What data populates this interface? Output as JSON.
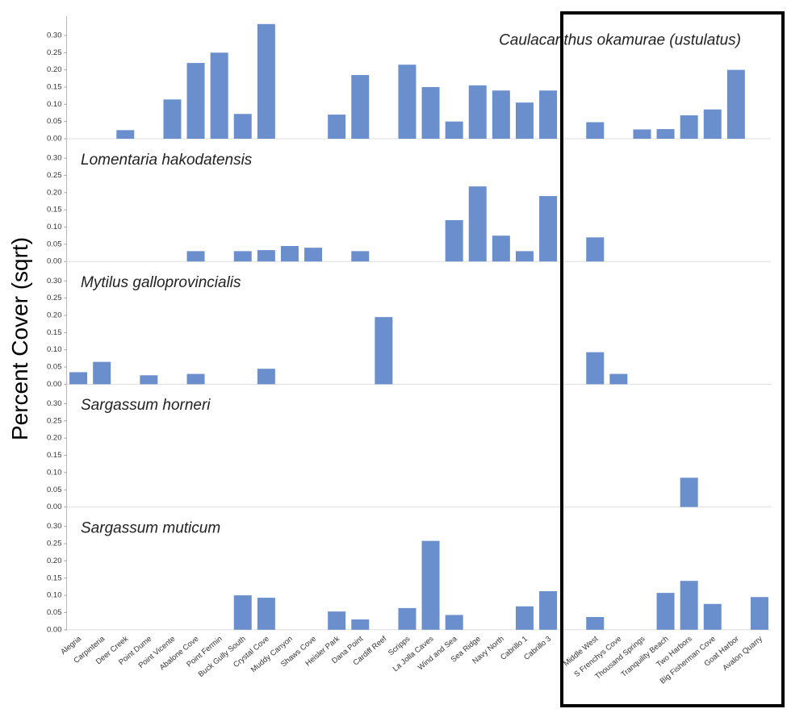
{
  "chart_data": {
    "type": "bar",
    "ylabel": "Percent Cover (sqrt)",
    "small_multiples": true,
    "categories": [
      "Alegria",
      "Carpinteria",
      "Deer Creek",
      "Point Dume",
      "Point Vicente",
      "Abalone Cove",
      "Point Fermin",
      "Buck Gully South",
      "Crystal Cove",
      "Muddy Canyon",
      "Shaws Cove",
      "Heisler Park",
      "Dana Point",
      "Cardiff Reef",
      "Scripps",
      "La Jolla Caves",
      "Wind and Sea",
      "Sea Ridge",
      "Navy North",
      "Cabrillo 1",
      "Cabrillo 3",
      null,
      "Middle West",
      "S Frenchys Cove",
      "Thousand Springs",
      "Tranquility Beach",
      "Two Harbors",
      "Big Fisherman Cove",
      "Goat Harbor",
      "Avalon Quarry"
    ],
    "ylim": [
      0,
      0.35
    ],
    "yticks": [
      {
        "value": 0,
        "label": "0.00"
      },
      {
        "value": 0.05,
        "label": "0.05"
      },
      {
        "value": 0.1,
        "label": "0.10"
      },
      {
        "value": 0.15,
        "label": "0.15"
      },
      {
        "value": 0.2,
        "label": "0.20"
      },
      {
        "value": 0.25,
        "label": "0.25"
      },
      {
        "value": 0.3,
        "label": "0.30"
      }
    ],
    "series": [
      {
        "name": "Caulacanthus okamurae (ustulatus)",
        "color": "#6b8fcd",
        "values": [
          0,
          0,
          0.025,
          0,
          0.114,
          0.22,
          0.25,
          0.072,
          0.333,
          0,
          0,
          0.07,
          0.185,
          0,
          0.215,
          0.15,
          0.05,
          0.155,
          0.14,
          0.105,
          0.14,
          0,
          0.048,
          0,
          0.027,
          0.028,
          0.068,
          0.085,
          0.2,
          0
        ]
      },
      {
        "name": "Lomentaria hakodatensis",
        "color": "#6b8fcd",
        "values": [
          0,
          0,
          0,
          0,
          0,
          0.03,
          0,
          0.03,
          0.033,
          0.045,
          0.04,
          0,
          0.03,
          0,
          0,
          0,
          0.12,
          0.218,
          0.075,
          0.03,
          0.19,
          0,
          0.07,
          0,
          0,
          0,
          0,
          0,
          0,
          0
        ]
      },
      {
        "name": "Mytilus galloprovincialis",
        "color": "#6b8fcd",
        "values": [
          0.035,
          0.065,
          0,
          0.026,
          0,
          0.03,
          0,
          0,
          0.045,
          0,
          0,
          0,
          0,
          0.195,
          0,
          0,
          0,
          0,
          0,
          0,
          0,
          0,
          0.093,
          0.03,
          0,
          0,
          0,
          0,
          0,
          0
        ]
      },
      {
        "name": "Sargassum horneri",
        "color": "#6b8fcd",
        "values": [
          0,
          0,
          0,
          0,
          0,
          0,
          0,
          0,
          0,
          0,
          0,
          0,
          0,
          0,
          0,
          0,
          0,
          0,
          0,
          0,
          0,
          0,
          0,
          0,
          0,
          0,
          0.085,
          0,
          0,
          0
        ]
      },
      {
        "name": "Sargassum muticum",
        "color": "#6b8fcd",
        "values": [
          0,
          0,
          0,
          0,
          0,
          0,
          0,
          0.1,
          0.093,
          0,
          0,
          0.053,
          0.03,
          0,
          0.063,
          0.258,
          0.043,
          0,
          0,
          0.068,
          0.112,
          0,
          0.037,
          0,
          0,
          0.107,
          0.142,
          0.075,
          0,
          0.095
        ]
      }
    ]
  }
}
